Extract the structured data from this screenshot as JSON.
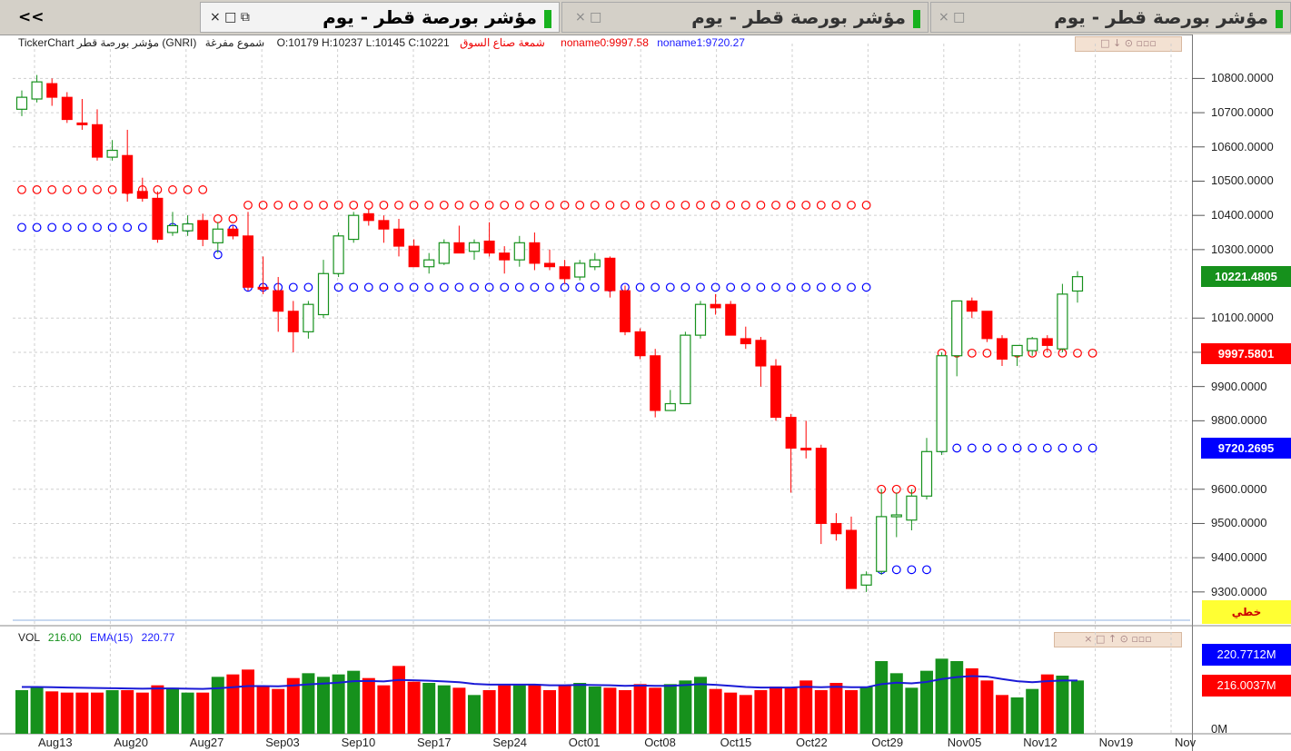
{
  "window": {
    "collapse_label": "<<",
    "tabs": [
      {
        "title": "مؤشر بورصة قطر - يوم",
        "active": true,
        "controls": "× □ ⧉"
      },
      {
        "title": "مؤشر بورصة قطر - يوم",
        "active": false,
        "controls": "× □"
      },
      {
        "title": "مؤشر بورصة قطر - يوم",
        "active": false,
        "controls": "× □"
      }
    ]
  },
  "info_bar": {
    "symbol": "TickerChart مؤشر بورصة قطر (GNRI)",
    "chart_type": "شموع مفرغة",
    "ohlc": "O:10179  H:10237  L:10145  C:10221",
    "indicator_name": "شمعة صناع السوق",
    "noname0": "noname0:9997.58",
    "noname1": "noname1:9720.27",
    "ctl_icons": "□ ↓ ⊙ ▫▫▫"
  },
  "volume_bar": {
    "vol_label": "VOL",
    "vol_value": "216.00",
    "ema_label": "EMA(15)",
    "ema_value": "220.77",
    "ctl_icons": "× □ ↑ ⊙ ▫▫▫"
  },
  "linear_button": "خطي",
  "colors": {
    "up": "#16911c",
    "down": "#ff0000",
    "level_high": "#ff0000",
    "level_low": "#0000ff",
    "ema": "#1a1ad6"
  },
  "chart_data": {
    "type": "candlestick",
    "price_axis": {
      "ticks": [
        10800,
        10700,
        10600,
        10500,
        10400,
        10300,
        10100,
        10000,
        9900,
        9800,
        9600,
        9500,
        9400,
        9300
      ],
      "tick_labels": [
        "10800.0000",
        "10700.0000",
        "10600.0000",
        "10500.0000",
        "10400.0000",
        "10300.0000",
        "10100.0000",
        "10000.0000",
        "9900.0000",
        "9800.0000",
        "9600.0000",
        "9500.0000",
        "9400.0000",
        "9300.0000"
      ],
      "range": [
        9220,
        10870
      ]
    },
    "price_tags": [
      {
        "label": "10221.4805",
        "value": 10221.4805,
        "color": "#16911c"
      },
      {
        "label": "9997.5801",
        "value": 9997.5801,
        "color": "#ff0000"
      },
      {
        "label": "9720.2695",
        "value": 9720.2695,
        "color": "#0000ff"
      }
    ],
    "x_labels": [
      "Aug13",
      "Aug20",
      "Aug27",
      "Sep03",
      "Sep10",
      "Sep17",
      "Sep24",
      "Oct01",
      "Oct08",
      "Oct15",
      "Oct22",
      "Oct29",
      "Nov05",
      "Nov12",
      "Nov19",
      "Nov"
    ],
    "candles": [
      {
        "o": 10710,
        "h": 10765,
        "l": 10690,
        "c": 10745
      },
      {
        "o": 10740,
        "h": 10810,
        "l": 10730,
        "c": 10790
      },
      {
        "o": 10785,
        "h": 10800,
        "l": 10720,
        "c": 10745
      },
      {
        "o": 10745,
        "h": 10760,
        "l": 10670,
        "c": 10680
      },
      {
        "o": 10670,
        "h": 10740,
        "l": 10650,
        "c": 10665
      },
      {
        "o": 10665,
        "h": 10710,
        "l": 10560,
        "c": 10570
      },
      {
        "o": 10570,
        "h": 10620,
        "l": 10560,
        "c": 10590
      },
      {
        "o": 10575,
        "h": 10650,
        "l": 10440,
        "c": 10465
      },
      {
        "o": 10470,
        "h": 10510,
        "l": 10440,
        "c": 10450
      },
      {
        "o": 10450,
        "h": 10470,
        "l": 10320,
        "c": 10330
      },
      {
        "o": 10350,
        "h": 10410,
        "l": 10340,
        "c": 10370
      },
      {
        "o": 10355,
        "h": 10400,
        "l": 10340,
        "c": 10375
      },
      {
        "o": 10385,
        "h": 10405,
        "l": 10310,
        "c": 10330
      },
      {
        "o": 10320,
        "h": 10380,
        "l": 10290,
        "c": 10360
      },
      {
        "o": 10360,
        "h": 10370,
        "l": 10330,
        "c": 10340
      },
      {
        "o": 10340,
        "h": 10410,
        "l": 10180,
        "c": 10190
      },
      {
        "o": 10190,
        "h": 10280,
        "l": 10170,
        "c": 10185
      },
      {
        "o": 10180,
        "h": 10220,
        "l": 10060,
        "c": 10120
      },
      {
        "o": 10120,
        "h": 10150,
        "l": 10000,
        "c": 10060
      },
      {
        "o": 10060,
        "h": 10150,
        "l": 10040,
        "c": 10140
      },
      {
        "o": 10110,
        "h": 10270,
        "l": 10100,
        "c": 10230
      },
      {
        "o": 10230,
        "h": 10350,
        "l": 10220,
        "c": 10340
      },
      {
        "o": 10330,
        "h": 10410,
        "l": 10320,
        "c": 10400
      },
      {
        "o": 10405,
        "h": 10420,
        "l": 10370,
        "c": 10385
      },
      {
        "o": 10385,
        "h": 10400,
        "l": 10320,
        "c": 10360
      },
      {
        "o": 10360,
        "h": 10390,
        "l": 10280,
        "c": 10310
      },
      {
        "o": 10310,
        "h": 10330,
        "l": 10250,
        "c": 10250
      },
      {
        "o": 10250,
        "h": 10290,
        "l": 10230,
        "c": 10270
      },
      {
        "o": 10260,
        "h": 10330,
        "l": 10255,
        "c": 10320
      },
      {
        "o": 10320,
        "h": 10370,
        "l": 10300,
        "c": 10290
      },
      {
        "o": 10295,
        "h": 10330,
        "l": 10270,
        "c": 10320
      },
      {
        "o": 10325,
        "h": 10380,
        "l": 10280,
        "c": 10290
      },
      {
        "o": 10290,
        "h": 10310,
        "l": 10230,
        "c": 10270
      },
      {
        "o": 10270,
        "h": 10340,
        "l": 10250,
        "c": 10320
      },
      {
        "o": 10320,
        "h": 10350,
        "l": 10240,
        "c": 10260
      },
      {
        "o": 10260,
        "h": 10300,
        "l": 10240,
        "c": 10250
      },
      {
        "o": 10250,
        "h": 10270,
        "l": 10200,
        "c": 10215
      },
      {
        "o": 10220,
        "h": 10270,
        "l": 10210,
        "c": 10260
      },
      {
        "o": 10250,
        "h": 10290,
        "l": 10240,
        "c": 10270
      },
      {
        "o": 10275,
        "h": 10280,
        "l": 10160,
        "c": 10180
      },
      {
        "o": 10180,
        "h": 10195,
        "l": 10050,
        "c": 10060
      },
      {
        "o": 10060,
        "h": 10070,
        "l": 9980,
        "c": 9990
      },
      {
        "o": 9990,
        "h": 10010,
        "l": 9810,
        "c": 9830
      },
      {
        "o": 9830,
        "h": 9890,
        "l": 9830,
        "c": 9850
      },
      {
        "o": 9850,
        "h": 10060,
        "l": 9850,
        "c": 10050
      },
      {
        "o": 10050,
        "h": 10150,
        "l": 10040,
        "c": 10140
      },
      {
        "o": 10140,
        "h": 10170,
        "l": 10110,
        "c": 10130
      },
      {
        "o": 10140,
        "h": 10150,
        "l": 10050,
        "c": 10050
      },
      {
        "o": 10040,
        "h": 10075,
        "l": 10010,
        "c": 10025
      },
      {
        "o": 10035,
        "h": 10045,
        "l": 9900,
        "c": 9960
      },
      {
        "o": 9960,
        "h": 9980,
        "l": 9800,
        "c": 9810
      },
      {
        "o": 9810,
        "h": 9820,
        "l": 9590,
        "c": 9720
      },
      {
        "o": 9720,
        "h": 9800,
        "l": 9690,
        "c": 9715
      },
      {
        "o": 9720,
        "h": 9730,
        "l": 9440,
        "c": 9500
      },
      {
        "o": 9500,
        "h": 9530,
        "l": 9450,
        "c": 9470
      },
      {
        "o": 9480,
        "h": 9520,
        "l": 9310,
        "c": 9310
      },
      {
        "o": 9320,
        "h": 9360,
        "l": 9300,
        "c": 9350
      },
      {
        "o": 9360,
        "h": 9600,
        "l": 9350,
        "c": 9520
      },
      {
        "o": 9520,
        "h": 9590,
        "l": 9460,
        "c": 9525
      },
      {
        "o": 9510,
        "h": 9600,
        "l": 9480,
        "c": 9580
      },
      {
        "o": 9580,
        "h": 9750,
        "l": 9570,
        "c": 9710
      },
      {
        "o": 9710,
        "h": 10000,
        "l": 9700,
        "c": 9990
      },
      {
        "o": 9990,
        "h": 10150,
        "l": 9930,
        "c": 10150
      },
      {
        "o": 10150,
        "h": 10160,
        "l": 10100,
        "c": 10120
      },
      {
        "o": 10120,
        "h": 10120,
        "l": 10030,
        "c": 10040
      },
      {
        "o": 10040,
        "h": 10050,
        "l": 9960,
        "c": 9980
      },
      {
        "o": 9990,
        "h": 10020,
        "l": 9960,
        "c": 10020
      },
      {
        "o": 10005,
        "h": 10045,
        "l": 9990,
        "c": 10040
      },
      {
        "o": 10040,
        "h": 10050,
        "l": 10000,
        "c": 10020
      },
      {
        "o": 10010,
        "h": 10200,
        "l": 10000,
        "c": 10170
      },
      {
        "o": 10179,
        "h": 10237,
        "l": 10145,
        "c": 10221
      }
    ],
    "levels": [
      {
        "name": "noname0",
        "color": "#ff0000",
        "segments": [
          {
            "from": 0,
            "to": 12,
            "value": 10475
          },
          {
            "from": 13,
            "to": 14,
            "value": 10390
          },
          {
            "from": 15,
            "to": 56,
            "value": 10430
          },
          {
            "from": 57,
            "to": 60,
            "value": 9600
          },
          {
            "from": 61,
            "to": 71,
            "value": 9997.58
          }
        ]
      },
      {
        "name": "noname1",
        "color": "#0000ff",
        "segments": [
          {
            "from": 0,
            "to": 12,
            "value": 10365
          },
          {
            "from": 13,
            "to": 13,
            "value": 10285
          },
          {
            "from": 14,
            "to": 14,
            "value": 10360
          },
          {
            "from": 15,
            "to": 56,
            "value": 10190
          },
          {
            "from": 57,
            "to": 60,
            "value": 9365
          },
          {
            "from": 61,
            "to": 71,
            "value": 9720.27
          }
        ]
      }
    ],
    "volume": {
      "axis_label": "0M",
      "tags": [
        {
          "label": "220.7712M",
          "color": "#0000ff"
        },
        {
          "label": "216.0037M",
          "color": "#ff0000"
        }
      ],
      "max": 360,
      "values": [
        180,
        190,
        175,
        170,
        170,
        170,
        180,
        180,
        170,
        200,
        190,
        170,
        170,
        235,
        245,
        265,
        195,
        185,
        230,
        250,
        235,
        245,
        260,
        230,
        200,
        280,
        215,
        210,
        200,
        190,
        160,
        180,
        200,
        200,
        205,
        180,
        200,
        210,
        195,
        190,
        180,
        205,
        190,
        205,
        220,
        235,
        185,
        170,
        160,
        180,
        195,
        190,
        220,
        180,
        210,
        180,
        195,
        300,
        250,
        190,
        260,
        310,
        300,
        270,
        220,
        160,
        150,
        185,
        245,
        240,
        220
      ],
      "ema": [
        193,
        193,
        192,
        191,
        190,
        189,
        188,
        187,
        186,
        187,
        187,
        186,
        185,
        188,
        192,
        197,
        197,
        196,
        199,
        204,
        207,
        211,
        217,
        218,
        216,
        222,
        221,
        219,
        216,
        213,
        206,
        203,
        203,
        203,
        203,
        200,
        200,
        202,
        201,
        200,
        198,
        199,
        198,
        198,
        201,
        205,
        202,
        198,
        193,
        191,
        191,
        191,
        194,
        192,
        194,
        192,
        192,
        205,
        211,
        208,
        214,
        226,
        234,
        238,
        236,
        226,
        217,
        213,
        217,
        220,
        220
      ]
    }
  }
}
